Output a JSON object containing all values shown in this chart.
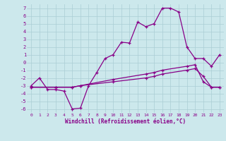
{
  "xlabel": "Windchill (Refroidissement éolien,°C)",
  "ylabel": "",
  "xlim": [
    -0.5,
    23.5
  ],
  "ylim": [
    -6.5,
    7.5
  ],
  "yticks": [
    -6,
    -5,
    -4,
    -3,
    -2,
    -1,
    0,
    1,
    2,
    3,
    4,
    5,
    6,
    7
  ],
  "xticks": [
    0,
    1,
    2,
    3,
    4,
    5,
    6,
    7,
    8,
    9,
    10,
    11,
    12,
    13,
    14,
    15,
    16,
    17,
    18,
    19,
    20,
    21,
    22,
    23
  ],
  "bg_color": "#cce8ec",
  "grid_color": "#aacdd4",
  "line_color": "#880088",
  "line1": {
    "x": [
      0,
      1,
      2,
      3,
      4,
      5,
      6,
      7,
      8,
      9,
      10,
      11,
      12,
      13,
      14,
      15,
      16,
      17,
      18,
      19,
      20,
      21,
      22,
      23
    ],
    "y": [
      -3.0,
      -2.0,
      -3.5,
      -3.5,
      -3.7,
      -6.0,
      -5.9,
      -3.0,
      -1.3,
      0.5,
      1.0,
      2.6,
      2.5,
      5.2,
      4.6,
      5.0,
      7.0,
      7.0,
      6.5,
      2.0,
      0.5,
      0.5,
      -0.5,
      1.0
    ]
  },
  "line2": {
    "x": [
      0,
      3,
      5,
      6,
      10,
      14,
      15,
      16,
      19,
      20,
      21,
      22,
      23
    ],
    "y": [
      -3.2,
      -3.2,
      -3.2,
      -3.0,
      -2.5,
      -2.0,
      -1.8,
      -1.5,
      -1.0,
      -0.8,
      -1.8,
      -3.2,
      -3.2
    ]
  },
  "line3": {
    "x": [
      0,
      3,
      5,
      6,
      10,
      14,
      15,
      16,
      19,
      20,
      21,
      22,
      23
    ],
    "y": [
      -3.2,
      -3.2,
      -3.2,
      -3.0,
      -2.2,
      -1.5,
      -1.3,
      -1.0,
      -0.5,
      -0.3,
      -2.5,
      -3.2,
      -3.2
    ]
  }
}
